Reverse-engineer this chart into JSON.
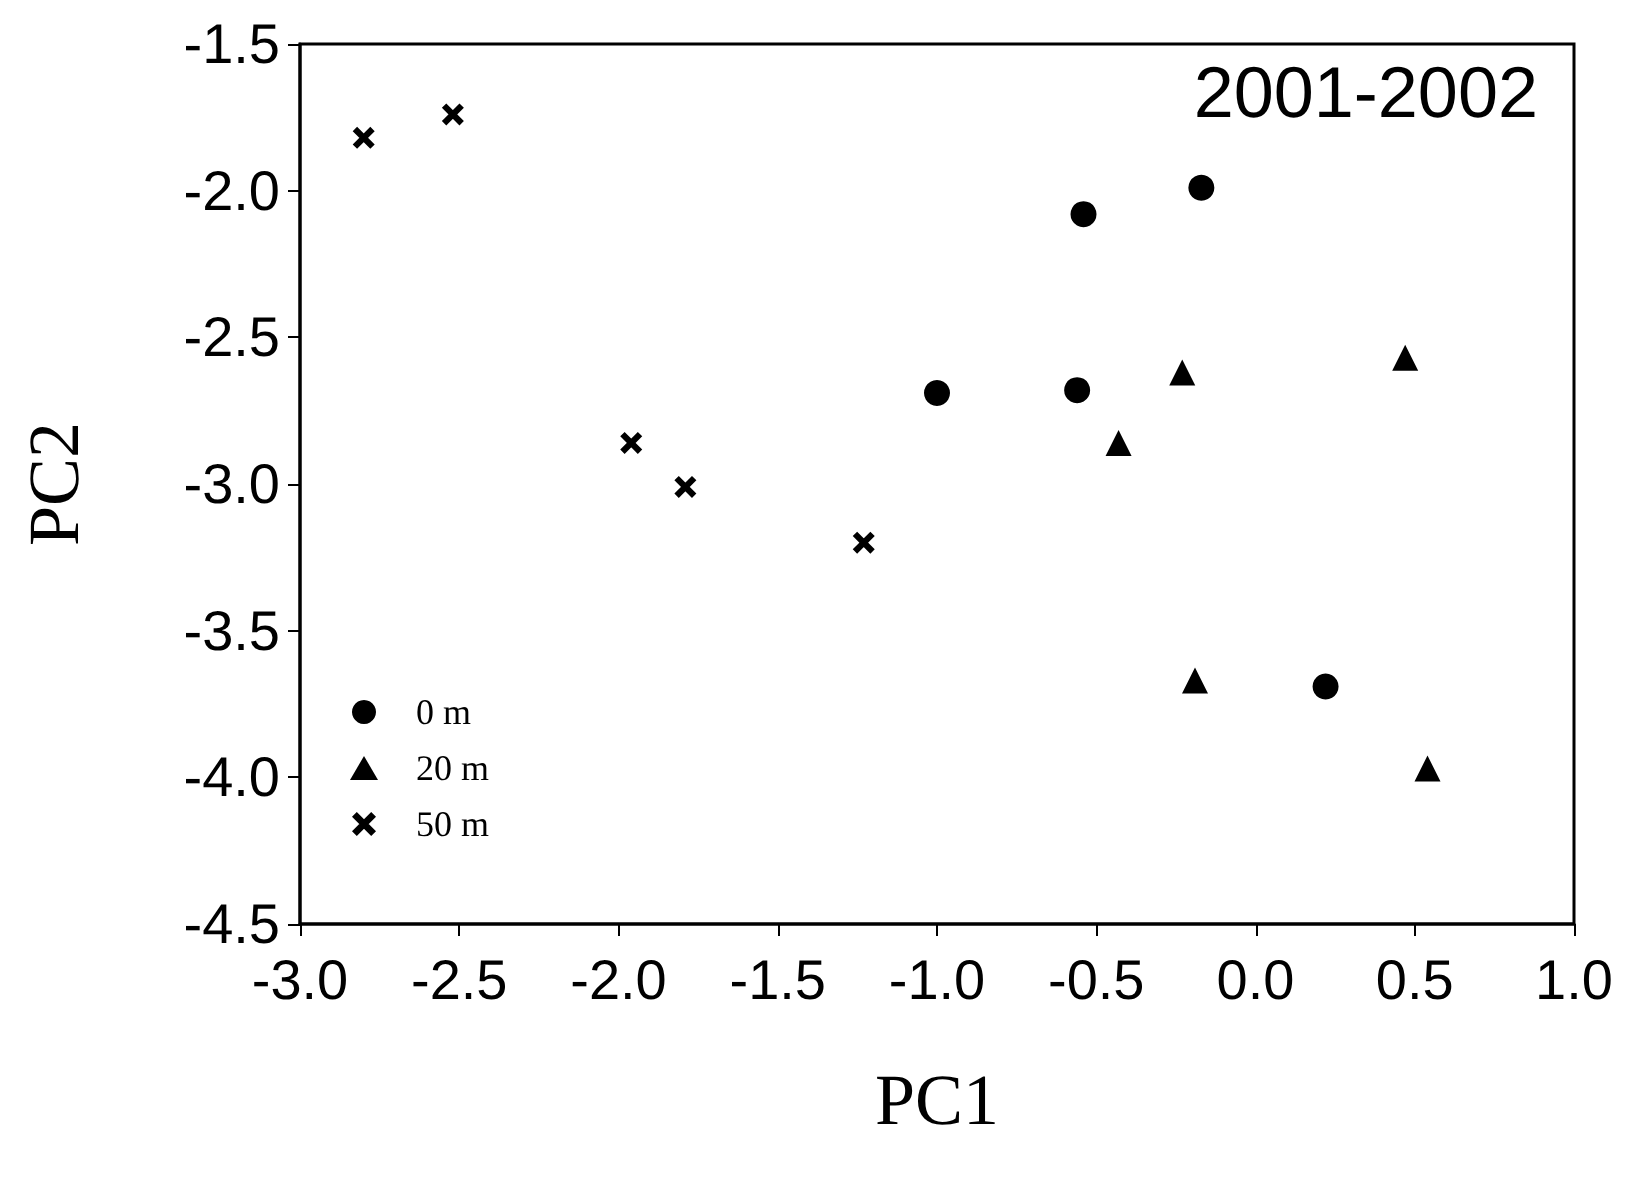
{
  "chart_data": {
    "type": "scatter",
    "xlabel": "PC1",
    "ylabel": "PC2",
    "annotations": [
      "2001-2002"
    ],
    "xlim": [
      -3.0,
      1.0
    ],
    "xticks": [
      {
        "value": -3,
        "label": "-3.0"
      },
      -2.5,
      {
        "value": -2,
        "label": "-2.0"
      },
      -1.5,
      {
        "value": -1,
        "label": "-1.0"
      },
      -0.5,
      {
        "value": 0,
        "label": "0.0"
      },
      0.5,
      {
        "value": 1,
        "label": "1.0"
      }
    ],
    "ylim": [
      -4.5,
      -1.5
    ],
    "yticks": [
      -4.5,
      {
        "value": -4,
        "label": "-4.0"
      },
      -3.5,
      {
        "value": -3,
        "label": "-3.0"
      },
      -2.5,
      {
        "value": -2,
        "label": "-2.0"
      },
      -1.5
    ],
    "grid": false,
    "legend": "bottom left",
    "series": [
      {
        "name": "0 m",
        "color": "#000000",
        "marker": "circle",
        "x": [
          -0.54,
          -0.17,
          -1.0,
          -0.56,
          0.22
        ],
        "values": [
          -2.08,
          -1.99,
          -2.69,
          -2.68,
          -3.69
        ]
      },
      {
        "name": "20 m",
        "color": "#000000",
        "marker": "triangle",
        "x": [
          -0.23,
          0.47,
          -0.43,
          -0.19,
          0.54
        ],
        "values": [
          -2.62,
          -2.57,
          -2.86,
          -3.67,
          -3.97
        ]
      },
      {
        "name": "50 m",
        "color": "#000000",
        "marker": "cross",
        "x": [
          -2.8,
          -2.52,
          -1.96,
          -1.79,
          -1.23
        ],
        "values": [
          -1.82,
          -1.74,
          -2.86,
          -3.01,
          -3.2
        ]
      }
    ]
  }
}
